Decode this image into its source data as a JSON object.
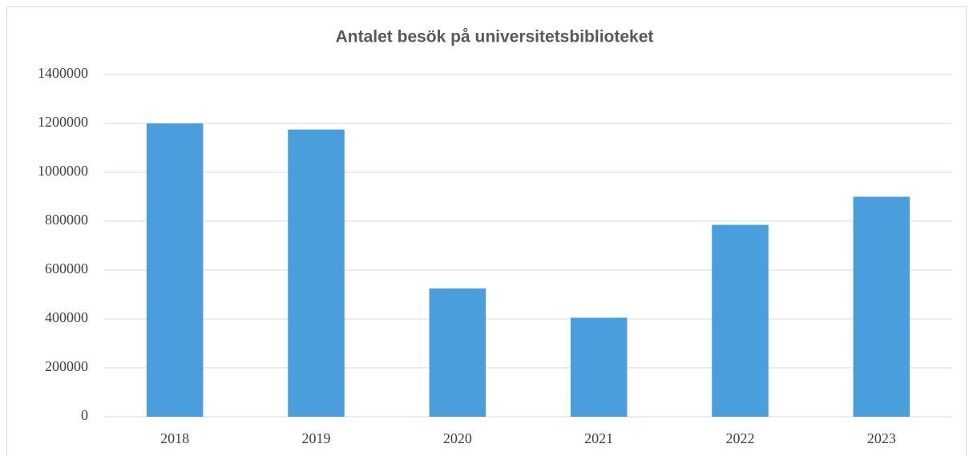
{
  "chart_data": {
    "type": "bar",
    "title": "Antalet besök på universitetsbiblioteket",
    "categories": [
      "2018",
      "2019",
      "2020",
      "2021",
      "2022",
      "2023"
    ],
    "values": [
      1200000,
      1175000,
      525000,
      405000,
      785000,
      900000
    ],
    "color": "#4a9edc",
    "ylim": [
      0,
      1400000
    ],
    "yticks": [
      0,
      200000,
      400000,
      600000,
      800000,
      1000000,
      1200000,
      1400000
    ],
    "grid": true
  }
}
